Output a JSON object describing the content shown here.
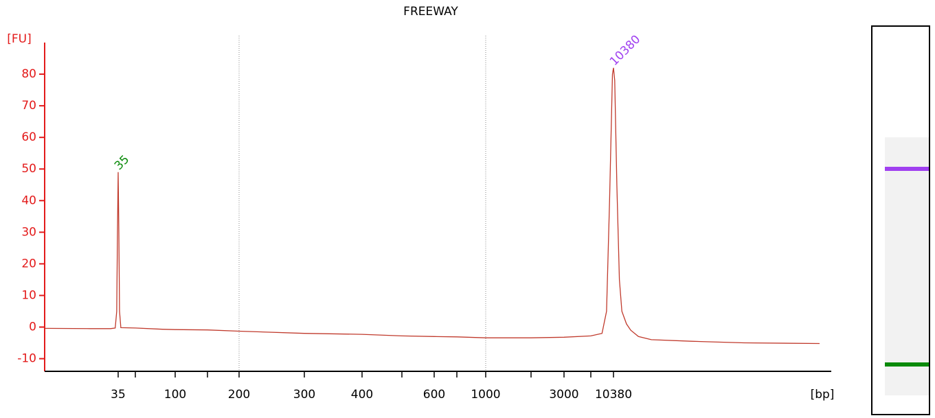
{
  "chart_data": {
    "type": "line",
    "title": "FREEWAY",
    "y_label": "[FU]",
    "x_label": "[bp]",
    "xscale": "ladder",
    "xlim": [
      8,
      370000
    ],
    "xticks": [
      35,
      {
        "value": 50,
        "label": null
      },
      100,
      {
        "value": 150,
        "label": null
      },
      200,
      300,
      400,
      {
        "value": 500,
        "label": null
      },
      600,
      {
        "value": 700,
        "label": null
      },
      1000,
      {
        "value": 2000,
        "label": null
      },
      3000,
      {
        "value": 7000,
        "label": null
      },
      10380
    ],
    "grid_at": [
      200,
      1000
    ],
    "ylim": [
      -14,
      90
    ],
    "yticks": [
      -10,
      0,
      10,
      20,
      30,
      40,
      50,
      60,
      70,
      80
    ],
    "axis_color": "#e31a1a",
    "series": [
      {
        "color": "#c0392b",
        "x": [
          8,
          20,
          30,
          33,
          34,
          34.5,
          35,
          35.5,
          36,
          37,
          50,
          80,
          100,
          150,
          200,
          300,
          400,
          500,
          600,
          700,
          1000,
          2000,
          3000,
          7000,
          8500,
          9200,
          9700,
          10200,
          10380,
          10600,
          11000,
          11500,
          12000,
          13000,
          14000,
          16000,
          20000,
          40000,
          100000,
          370000
        ],
        "values": [
          -0.4,
          -0.5,
          -0.5,
          -0.3,
          5,
          30,
          49,
          30,
          5,
          -0.2,
          -0.3,
          -0.7,
          -0.8,
          -0.9,
          -1.3,
          -2,
          -2.3,
          -2.8,
          -3,
          -3.1,
          -3.4,
          -3.4,
          -3.2,
          -2.8,
          -2,
          5,
          40,
          80,
          82,
          78,
          45,
          15,
          5,
          1,
          -1,
          -3,
          -4,
          -4.5,
          -5,
          -5.2
        ]
      }
    ],
    "annotations": [
      {
        "text": "35",
        "x": 35,
        "y": 49,
        "color": "#0a8a0a"
      },
      {
        "text": "10380",
        "x": 10380,
        "y": 82,
        "color": "#a040f0"
      }
    ]
  }
}
